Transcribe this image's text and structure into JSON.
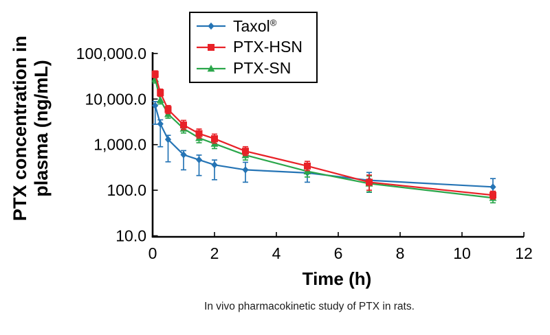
{
  "caption": "In vivo pharmacokinetic study of PTX in rats.",
  "chart_data": {
    "type": "line",
    "title": "",
    "xlabel": "Time (h)",
    "ylabel_line1": "PTX concentration in",
    "ylabel_line2": "plasma (ng/mL)",
    "grid": false,
    "legend_position": "top-center",
    "x_axis": {
      "min": 0,
      "max": 12,
      "ticks": [
        0,
        2,
        4,
        6,
        8,
        10,
        12
      ],
      "tick_labels": [
        "0",
        "2",
        "4",
        "6",
        "8",
        "10",
        "12"
      ]
    },
    "y_axis": {
      "scale": "log",
      "min": 10,
      "max": 100000,
      "ticks": [
        100000,
        10000,
        1000,
        100,
        10
      ],
      "tick_labels": [
        "100,000.0",
        "10,000.0",
        "1,000.0",
        "100.0",
        "10.0"
      ]
    },
    "x": [
      0.083,
      0.25,
      0.5,
      1,
      1.5,
      2,
      3,
      5,
      7,
      11
    ],
    "series": [
      {
        "name": "Taxol",
        "name_suffix": "®",
        "color": "#2574b5",
        "marker": "diamond",
        "values": [
          7200,
          2850,
          1300,
          600,
          465,
          360,
          280,
          240,
          165,
          118
        ],
        "err_lo": [
          2800,
          900,
          420,
          280,
          210,
          170,
          150,
          150,
          90,
          87
        ],
        "err_hi": [
          8800,
          3500,
          1600,
          740,
          590,
          460,
          410,
          330,
          245,
          180
        ]
      },
      {
        "name": "PTX-HSN",
        "name_suffix": "",
        "color": "#e82127",
        "marker": "square",
        "values": [
          35000,
          13800,
          5900,
          2700,
          1750,
          1350,
          720,
          340,
          150,
          78
        ],
        "err_lo": [
          29500,
          11500,
          4800,
          2150,
          1400,
          1080,
          580,
          270,
          100,
          64
        ],
        "err_hi": [
          41500,
          16500,
          7200,
          3400,
          2200,
          1700,
          900,
          430,
          215,
          95
        ]
      },
      {
        "name": "PTX-SN",
        "name_suffix": "",
        "color": "#2aa64a",
        "marker": "triangle",
        "values": [
          27500,
          9500,
          4700,
          2250,
          1400,
          1050,
          590,
          260,
          140,
          68
        ],
        "err_lo": [
          22500,
          7800,
          3800,
          1800,
          1100,
          820,
          460,
          195,
          92,
          53
        ],
        "err_hi": [
          33500,
          11500,
          5800,
          2800,
          1750,
          1350,
          750,
          340,
          205,
          87
        ]
      }
    ]
  }
}
